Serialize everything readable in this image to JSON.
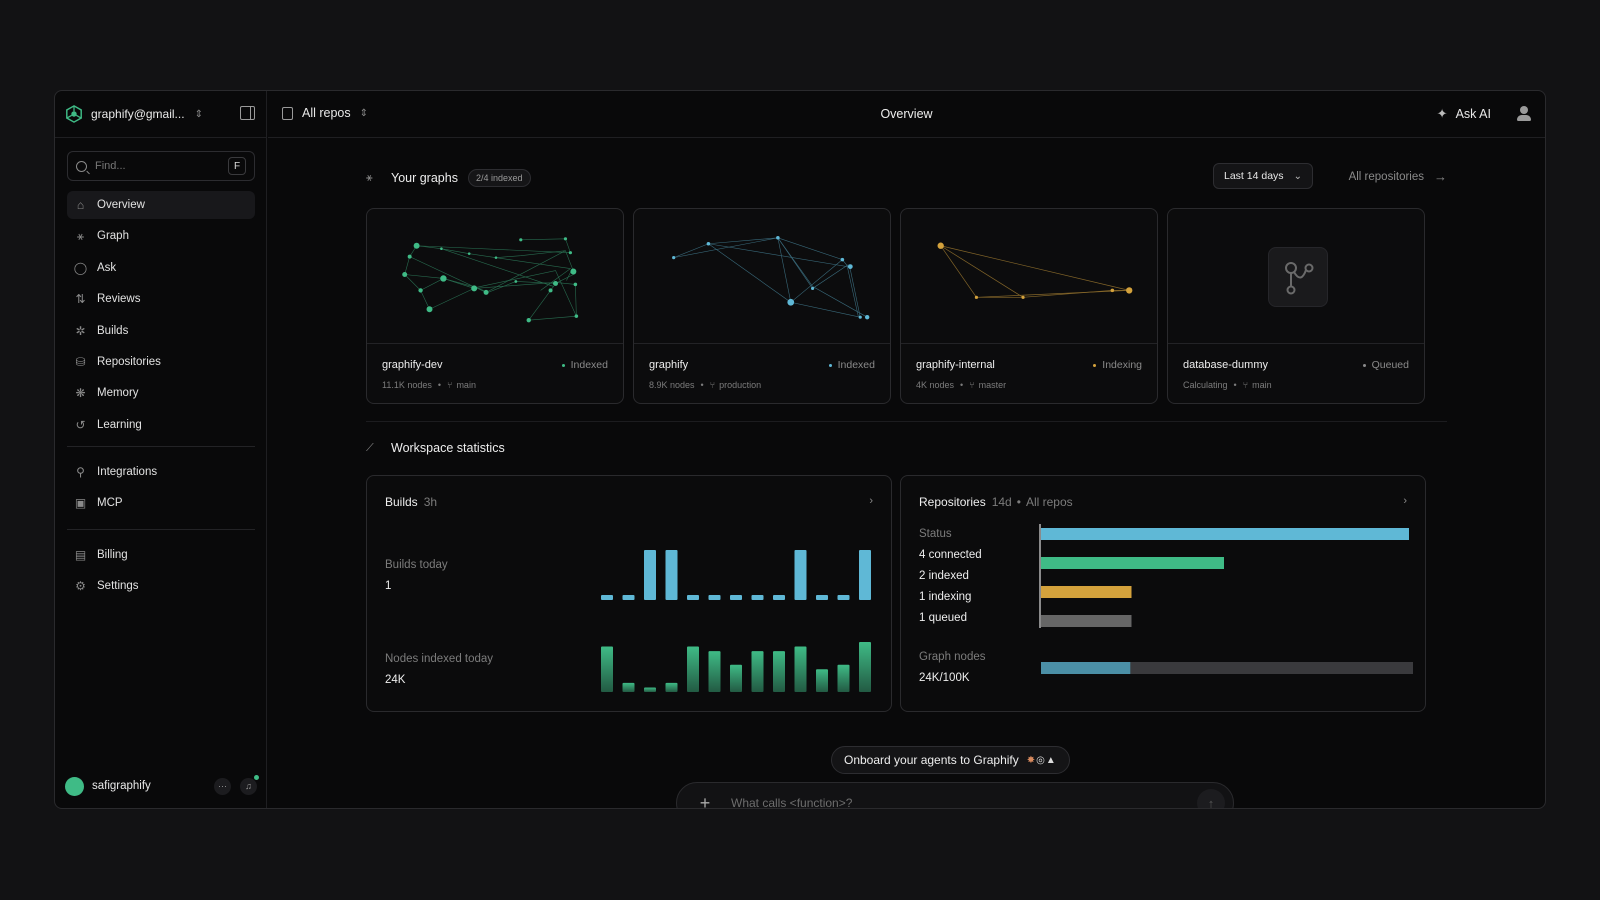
{
  "app": {
    "account_email": "graphify@gmail...",
    "page_title": "Overview"
  },
  "sidebar": {
    "search_placeholder": "Find...",
    "search_shortcut": "F",
    "items": [
      {
        "label": "Overview",
        "icon": "home-icon",
        "active": true
      },
      {
        "label": "Graph",
        "icon": "graph-icon"
      },
      {
        "label": "Ask",
        "icon": "chat-bubble-icon"
      },
      {
        "label": "Reviews",
        "icon": "pull-request-icon"
      },
      {
        "label": "Builds",
        "icon": "loader-icon"
      },
      {
        "label": "Repositories",
        "icon": "database-icon"
      },
      {
        "label": "Memory",
        "icon": "brain-icon"
      },
      {
        "label": "Learning",
        "icon": "history-icon"
      }
    ],
    "items2": [
      {
        "label": "Integrations",
        "icon": "plug-icon"
      },
      {
        "label": "MCP",
        "icon": "terminal-icon"
      }
    ],
    "items3": [
      {
        "label": "Billing",
        "icon": "receipt-icon"
      },
      {
        "label": "Settings",
        "icon": "gear-icon"
      }
    ],
    "user": {
      "name": "safigraphify"
    }
  },
  "topbar": {
    "repo_selector": "All repos",
    "ask_ai": "Ask AI"
  },
  "graphs": {
    "title": "Your graphs",
    "badge": "2/4 indexed",
    "range": "Last 14 days",
    "all_link": "All repositories",
    "cards": [
      {
        "name": "graphify-dev",
        "status": "Indexed",
        "nodes": "11.1K nodes",
        "branch": "main",
        "color": "#3fbb86"
      },
      {
        "name": "graphify",
        "status": "Indexed",
        "nodes": "8.9K nodes",
        "branch": "production",
        "color": "#5fb8d6"
      },
      {
        "name": "graphify-internal",
        "status": "Indexing",
        "nodes": "4K nodes",
        "branch": "master",
        "color": "#d4a23c"
      },
      {
        "name": "database-dummy",
        "status": "Queued",
        "nodes": "Calculating",
        "branch": "main",
        "color": "#8a8a8a"
      }
    ]
  },
  "stats": {
    "title": "Workspace statistics",
    "builds": {
      "title": "Builds",
      "period": "3h",
      "builds_label": "Builds today",
      "builds_value": "1",
      "nodes_label": "Nodes indexed today",
      "nodes_value": "24K",
      "bar_color": "#5fb8d6",
      "bar2_color": "#3fbb86",
      "builds_bars": [
        1,
        1,
        10,
        10,
        1,
        1,
        1,
        1,
        1,
        10,
        1,
        1,
        10
      ],
      "nodes_bars": [
        10,
        2,
        1,
        2,
        10,
        9,
        6,
        9,
        9,
        10,
        5,
        6,
        11
      ]
    },
    "repos": {
      "title": "Repositories",
      "period": "14d",
      "scope": "All repos",
      "status_label": "Status",
      "rows": [
        {
          "label": "4 connected",
          "value": 4,
          "color": "#5fb8d6"
        },
        {
          "label": "2 indexed",
          "value": 2,
          "color": "#3fbb86"
        },
        {
          "label": "1 indexing",
          "value": 1,
          "color": "#d4a23c"
        },
        {
          "label": "1 queued",
          "value": 1,
          "color": "#666666"
        }
      ],
      "nodes_label": "Graph nodes",
      "nodes_value": "24K/100K",
      "nodes_fraction": 0.24
    }
  },
  "chat": {
    "onboard": "Onboard your agents to Graphify",
    "placeholder": "What calls <function>?"
  }
}
